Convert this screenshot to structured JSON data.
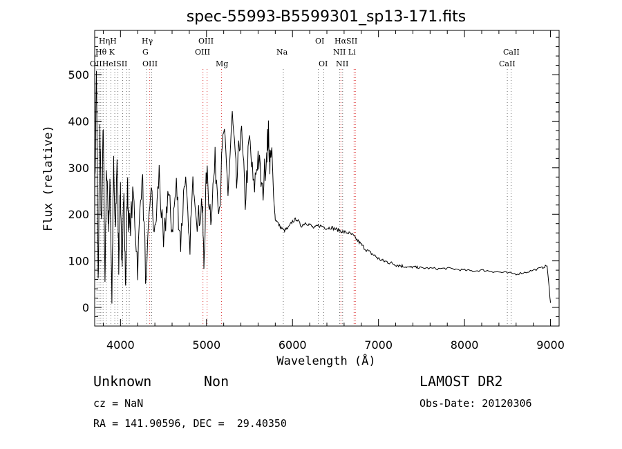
{
  "chart_data": {
    "type": "line",
    "title": "spec-55993-B5599301_sp13-171.fits",
    "xlabel": "Wavelength (Å)",
    "ylabel": "Flux (relative)",
    "xlim": [
      3700,
      9100
    ],
    "ylim": [
      -40,
      595
    ],
    "xticks": [
      4000,
      5000,
      6000,
      7000,
      8000,
      9000
    ],
    "yticks": [
      0,
      100,
      200,
      300,
      400,
      500
    ],
    "grid": false,
    "series": [
      {
        "color": "#000000",
        "x": [
          3700,
          3720,
          3740,
          3760,
          3780,
          3800,
          3820,
          3840,
          3860,
          3880,
          3900,
          3920,
          3940,
          3960,
          3980,
          4000,
          4020,
          4040,
          4060,
          4080,
          4100,
          4150,
          4200,
          4250,
          4300,
          4350,
          4400,
          4450,
          4500,
          4550,
          4600,
          4650,
          4700,
          4750,
          4800,
          4850,
          4900,
          4950,
          4970,
          5000,
          5050,
          5100,
          5150,
          5200,
          5250,
          5300,
          5350,
          5400,
          5450,
          5500,
          5550,
          5600,
          5650,
          5700,
          5720,
          5740,
          5760,
          5780,
          5800,
          5850,
          5900,
          5950,
          6000,
          6050,
          6100,
          6150,
          6200,
          6250,
          6300,
          6350,
          6400,
          6450,
          6500,
          6550,
          6600,
          6650,
          6700,
          6750,
          6800,
          6850,
          6900,
          6950,
          7000,
          7050,
          7100,
          7150,
          7200,
          7250,
          7300,
          7350,
          7400,
          7450,
          7500,
          7600,
          7700,
          7800,
          7900,
          8000,
          8100,
          8200,
          8300,
          8400,
          8500,
          8600,
          8700,
          8800,
          8900,
          8960,
          9000
        ],
        "y": [
          200,
          520,
          40,
          380,
          160,
          390,
          60,
          310,
          180,
          260,
          20,
          300,
          150,
          330,
          100,
          260,
          60,
          280,
          30,
          270,
          160,
          240,
          90,
          300,
          40,
          260,
          150,
          290,
          120,
          250,
          170,
          260,
          140,
          290,
          120,
          280,
          180,
          230,
          90,
          290,
          200,
          310,
          220,
          380,
          250,
          410,
          260,
          390,
          230,
          360,
          250,
          330,
          240,
          340,
          370,
          310,
          340,
          240,
          190,
          175,
          165,
          170,
          185,
          190,
          175,
          182,
          178,
          170,
          176,
          174,
          170,
          172,
          168,
          165,
          162,
          160,
          155,
          145,
          135,
          125,
          118,
          112,
          105,
          100,
          98,
          95,
          92,
          90,
          88,
          86,
          87,
          86,
          85,
          84,
          83,
          84,
          82,
          80,
          78,
          80,
          78,
          76,
          74,
          72,
          75,
          80,
          85,
          90,
          10
        ]
      }
    ],
    "lines_top_row": [
      "HηH",
      "Hγ",
      "OIII",
      "OI",
      "HαSII"
    ],
    "lines_row2": [
      "Hθ K",
      "G",
      "OIII",
      "Na",
      "NII Li",
      "CaII"
    ],
    "lines_row3": [
      "OIIHeISII",
      "OIII",
      "Mg",
      "OI",
      "NII",
      "CaII"
    ]
  },
  "info": {
    "class": "Unknown",
    "subclass": "Non",
    "survey": "LAMOST DR2",
    "cz": "cz = NaN",
    "obs_date": "Obs-Date: 20120306",
    "radec": "RA = 141.90596, DEC =  29.40350"
  }
}
